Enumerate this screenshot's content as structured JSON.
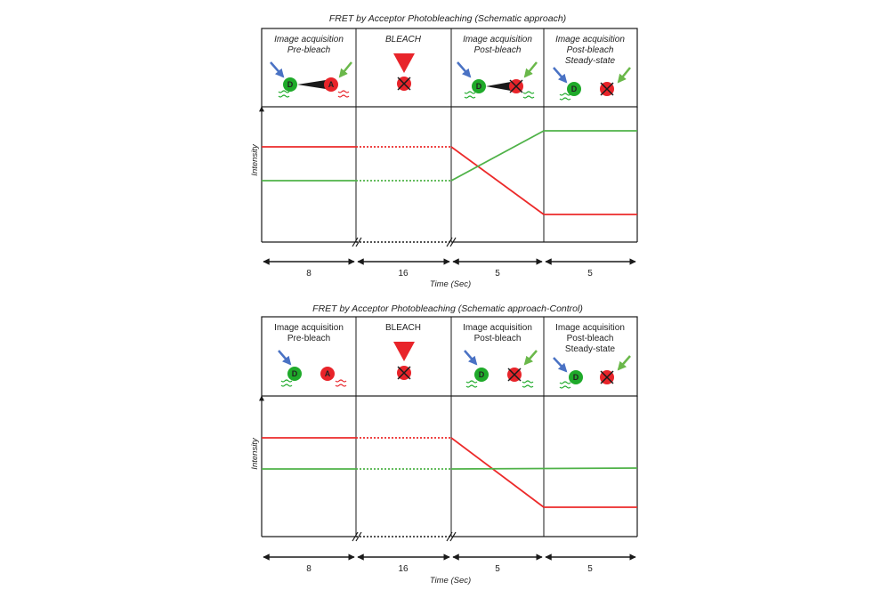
{
  "colors": {
    "donor": "#1faa2a",
    "acceptor": "#e8242a",
    "excite_blue": "#4a72c4",
    "excite_green": "#6ab84a",
    "line_red": "#ec2a2a",
    "line_green": "#4fb248",
    "frame": "#1a1a1a"
  },
  "panels": [
    {
      "title": "FRET by Acceptor Photobleaching  (Schematic approach)",
      "italic": true,
      "phases": [
        {
          "lines": [
            "Image acquisition",
            "Pre-bleach"
          ]
        },
        {
          "lines": [
            "BLEACH"
          ]
        },
        {
          "lines": [
            "Image acquisition",
            "Post-bleach"
          ]
        },
        {
          "lines": [
            "Image acquisition",
            "Post-bleach",
            "Steady-state"
          ]
        }
      ],
      "donor_label": "D",
      "acceptor_label": "A",
      "ylabel": "Intensity",
      "xlabel": "Time (Sec)",
      "durations": [
        "8",
        "16",
        "5",
        "5"
      ]
    },
    {
      "title": "FRET by Acceptor Photobleaching  (Schematic approach-Control)",
      "italic": false,
      "phases": [
        {
          "lines": [
            "Image acquisition",
            "Pre-bleach"
          ]
        },
        {
          "lines": [
            "BLEACH"
          ]
        },
        {
          "lines": [
            "Image acquisition",
            "Post-bleach"
          ]
        },
        {
          "lines": [
            "Image acquisition",
            "Post-bleach",
            "Steady-state"
          ]
        }
      ],
      "donor_label": "D",
      "acceptor_label": "A",
      "ylabel": "Intensity",
      "xlabel": "Time (Sec)",
      "durations": [
        "8",
        "16",
        "5",
        "5"
      ]
    }
  ]
}
